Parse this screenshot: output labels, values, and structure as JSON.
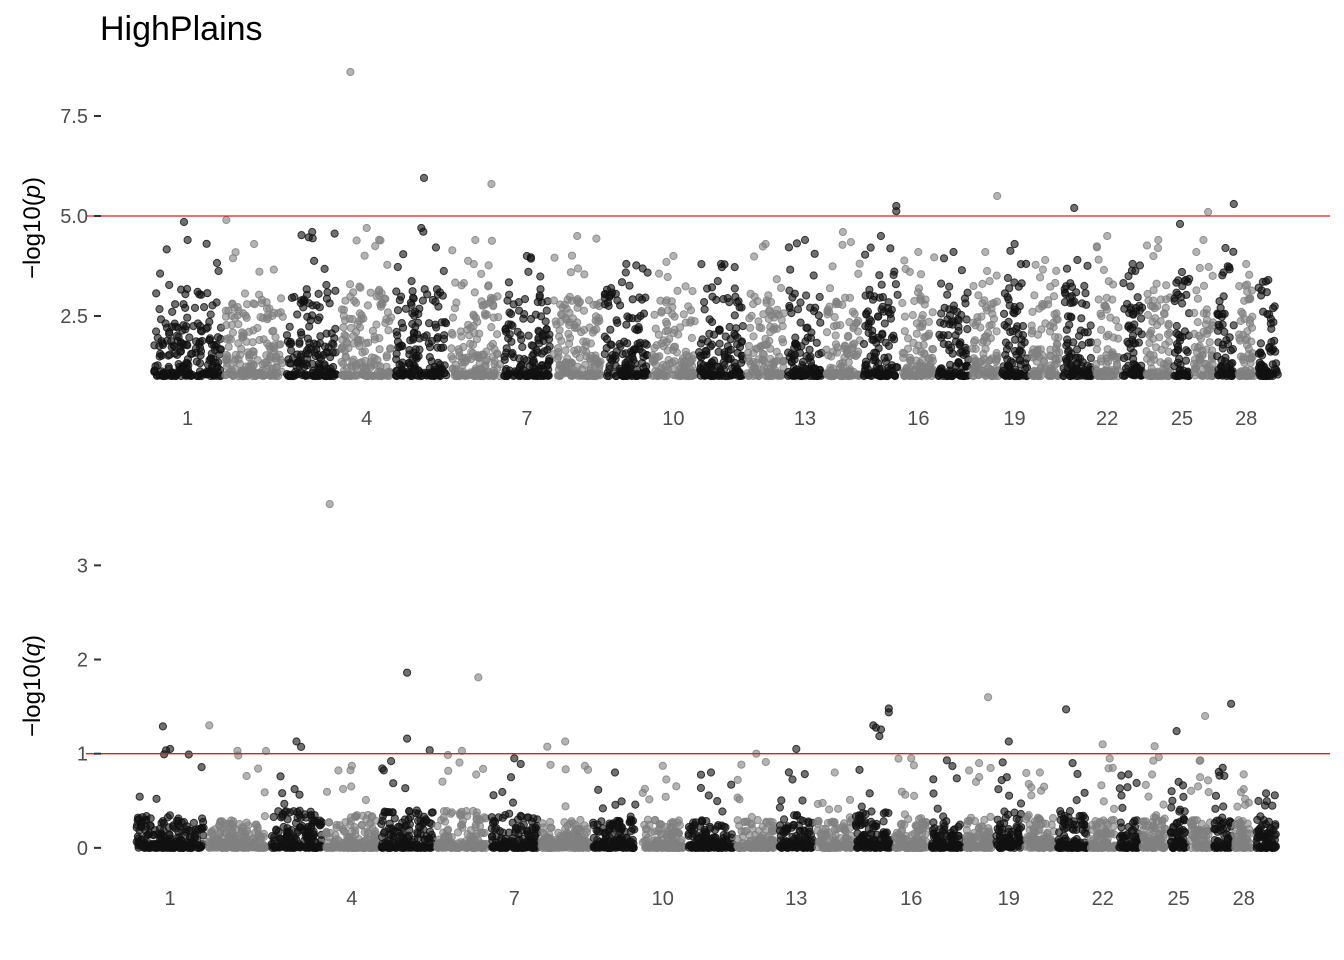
{
  "figure": {
    "title": "HighPlains"
  },
  "chart_data": [
    {
      "type": "scatter",
      "subtype": "manhattan",
      "title": "HighPlains",
      "ylabel_prefix": "−log10(",
      "ylabel_var": "p",
      "ylabel_suffix": ")",
      "ylim": [
        0.85,
        8.9
      ],
      "y_ticks": [
        2.5,
        5.0,
        7.5
      ],
      "y_tick_labels": [
        "2.5",
        "5.0",
        "7.5"
      ],
      "threshold": 5.0,
      "threshold_color": "#e31a1c",
      "baseline": 1.0,
      "colors": [
        "#111111",
        "#808080"
      ],
      "x_tick_labels": [
        "1",
        "4",
        "7",
        "10",
        "13",
        "16",
        "19",
        "22",
        "25",
        "28"
      ],
      "x_tick_chromosomes": [
        1,
        4,
        7,
        10,
        13,
        16,
        19,
        22,
        25,
        28
      ],
      "chromosomes": [
        {
          "chr": 1,
          "top": 3.2,
          "peak": 4.4
        },
        {
          "chr": 2,
          "top": 3.0,
          "peak": 4.3
        },
        {
          "chr": 3,
          "top": 3.3,
          "peak": 4.6
        },
        {
          "chr": 4,
          "top": 3.3,
          "peak": 4.7
        },
        {
          "chr": 5,
          "top": 3.2,
          "peak": 4.7
        },
        {
          "chr": 6,
          "top": 3.4,
          "peak": 4.4
        },
        {
          "chr": 7,
          "top": 3.1,
          "peak": 4.0
        },
        {
          "chr": 8,
          "top": 3.0,
          "peak": 4.5
        },
        {
          "chr": 9,
          "top": 3.2,
          "peak": 3.8
        },
        {
          "chr": 10,
          "top": 3.0,
          "peak": 4.0
        },
        {
          "chr": 11,
          "top": 3.2,
          "peak": 3.8
        },
        {
          "chr": 12,
          "top": 3.0,
          "peak": 4.3
        },
        {
          "chr": 13,
          "top": 3.1,
          "peak": 4.4
        },
        {
          "chr": 14,
          "top": 3.0,
          "peak": 4.6
        },
        {
          "chr": 15,
          "top": 3.3,
          "peak": 4.5
        },
        {
          "chr": 16,
          "top": 3.1,
          "peak": 4.1
        },
        {
          "chr": 17,
          "top": 3.0,
          "peak": 4.1
        },
        {
          "chr": 18,
          "top": 3.0,
          "peak": 4.1
        },
        {
          "chr": 19,
          "top": 3.3,
          "peak": 4.3
        },
        {
          "chr": 20,
          "top": 3.1,
          "peak": 3.9
        },
        {
          "chr": 21,
          "top": 3.2,
          "peak": 3.9
        },
        {
          "chr": 22,
          "top": 3.0,
          "peak": 4.5
        },
        {
          "chr": 23,
          "top": 3.1,
          "peak": 3.8
        },
        {
          "chr": 24,
          "top": 3.1,
          "peak": 4.4
        },
        {
          "chr": 25,
          "top": 3.3,
          "peak": 3.6
        },
        {
          "chr": 26,
          "top": 3.0,
          "peak": 4.4
        },
        {
          "chr": 27,
          "top": 3.1,
          "peak": 4.2
        },
        {
          "chr": 28,
          "top": 3.0,
          "peak": 3.8
        },
        {
          "chr": 29,
          "top": 3.0,
          "peak": 3.4
        }
      ],
      "highlights": [
        {
          "chr": 1,
          "pos": 0.45,
          "y": 4.85
        },
        {
          "chr": 2,
          "pos": 0.05,
          "y": 4.9
        },
        {
          "chr": 4,
          "pos": 0.2,
          "y": 8.6
        },
        {
          "chr": 5,
          "pos": 0.55,
          "y": 5.95
        },
        {
          "chr": 6,
          "pos": 0.8,
          "y": 5.8
        },
        {
          "chr": 15,
          "pos": 0.9,
          "y": 5.25
        },
        {
          "chr": 15,
          "pos": 0.9,
          "y": 5.12
        },
        {
          "chr": 18,
          "pos": 0.9,
          "y": 5.5
        },
        {
          "chr": 21,
          "pos": 0.4,
          "y": 5.2
        },
        {
          "chr": 26,
          "pos": 0.7,
          "y": 5.1
        },
        {
          "chr": 27,
          "pos": 0.9,
          "y": 5.3
        },
        {
          "chr": 25,
          "pos": 0.4,
          "y": 4.8
        }
      ]
    },
    {
      "type": "scatter",
      "subtype": "manhattan",
      "title": "",
      "ylabel_prefix": "−log10(",
      "ylabel_var": "q",
      "ylabel_suffix": ")",
      "ylim": [
        -0.15,
        3.8
      ],
      "y_ticks": [
        0,
        1,
        2,
        3
      ],
      "y_tick_labels": [
        "0",
        "1",
        "2",
        "3"
      ],
      "threshold": 1.0,
      "threshold_color": "#e31a1c",
      "baseline": 0.0,
      "colors": [
        "#111111",
        "#808080"
      ],
      "x_tick_labels": [
        "1",
        "4",
        "7",
        "10",
        "13",
        "16",
        "19",
        "22",
        "25",
        "28"
      ],
      "x_tick_chromosomes": [
        1,
        4,
        7,
        10,
        13,
        16,
        19,
        22,
        25,
        28
      ],
      "chromosomes": [
        {
          "chr": 1,
          "top": 0.35,
          "peak": 1.05
        },
        {
          "chr": 2,
          "top": 0.3,
          "peak": 1.03
        },
        {
          "chr": 3,
          "top": 0.4,
          "peak": 1.13
        },
        {
          "chr": 4,
          "top": 0.35,
          "peak": 0.87
        },
        {
          "chr": 5,
          "top": 0.4,
          "peak": 1.16
        },
        {
          "chr": 6,
          "top": 0.4,
          "peak": 1.03
        },
        {
          "chr": 7,
          "top": 0.35,
          "peak": 0.95
        },
        {
          "chr": 8,
          "top": 0.3,
          "peak": 1.13
        },
        {
          "chr": 9,
          "top": 0.3,
          "peak": 0.8
        },
        {
          "chr": 10,
          "top": 0.3,
          "peak": 0.87
        },
        {
          "chr": 11,
          "top": 0.3,
          "peak": 0.8
        },
        {
          "chr": 12,
          "top": 0.3,
          "peak": 1.0
        },
        {
          "chr": 13,
          "top": 0.35,
          "peak": 1.05
        },
        {
          "chr": 14,
          "top": 0.3,
          "peak": 0.8
        },
        {
          "chr": 15,
          "top": 0.4,
          "peak": 1.3
        },
        {
          "chr": 16,
          "top": 0.35,
          "peak": 0.95
        },
        {
          "chr": 17,
          "top": 0.3,
          "peak": 0.93
        },
        {
          "chr": 18,
          "top": 0.3,
          "peak": 0.9
        },
        {
          "chr": 19,
          "top": 0.4,
          "peak": 1.13
        },
        {
          "chr": 20,
          "top": 0.35,
          "peak": 0.8
        },
        {
          "chr": 21,
          "top": 0.35,
          "peak": 0.9
        },
        {
          "chr": 22,
          "top": 0.3,
          "peak": 1.1
        },
        {
          "chr": 23,
          "top": 0.3,
          "peak": 0.78
        },
        {
          "chr": 24,
          "top": 0.35,
          "peak": 1.08
        },
        {
          "chr": 25,
          "top": 0.4,
          "peak": 0.7
        },
        {
          "chr": 26,
          "top": 0.3,
          "peak": 0.93
        },
        {
          "chr": 27,
          "top": 0.35,
          "peak": 0.85
        },
        {
          "chr": 28,
          "top": 0.3,
          "peak": 0.78
        },
        {
          "chr": 29,
          "top": 0.3,
          "peak": 0.58
        }
      ],
      "highlights": [
        {
          "chr": 1,
          "pos": 0.4,
          "y": 1.29
        },
        {
          "chr": 2,
          "pos": 0.05,
          "y": 1.3
        },
        {
          "chr": 4,
          "pos": 0.1,
          "y": 3.65
        },
        {
          "chr": 5,
          "pos": 0.5,
          "y": 1.86
        },
        {
          "chr": 6,
          "pos": 0.8,
          "y": 1.81
        },
        {
          "chr": 15,
          "pos": 0.9,
          "y": 1.48
        },
        {
          "chr": 15,
          "pos": 0.9,
          "y": 1.44
        },
        {
          "chr": 18,
          "pos": 0.8,
          "y": 1.6
        },
        {
          "chr": 21,
          "pos": 0.3,
          "y": 1.47
        },
        {
          "chr": 25,
          "pos": 0.4,
          "y": 1.24
        },
        {
          "chr": 26,
          "pos": 0.7,
          "y": 1.4
        },
        {
          "chr": 27,
          "pos": 0.9,
          "y": 1.53
        }
      ]
    }
  ]
}
